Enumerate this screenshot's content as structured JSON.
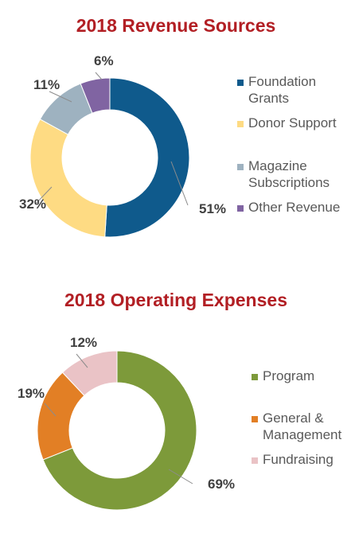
{
  "chart_data": [
    {
      "type": "pie",
      "title": "2018 Revenue Sources",
      "categories": [
        "Foundation Grants",
        "Donor Support",
        "Magazine Subscriptions",
        "Other Revenue"
      ],
      "legend_lines": [
        [
          "Foundation",
          "Grants"
        ],
        [
          "Donor Support"
        ],
        [
          "Magazine",
          "Subscriptions"
        ],
        [
          "Other Revenue"
        ]
      ],
      "values": [
        51,
        32,
        11,
        6
      ],
      "labels": [
        "51%",
        "32%",
        "11%",
        "6%"
      ],
      "colors": [
        "#0f5a8c",
        "#fedb83",
        "#9eb2c0",
        "#8064a2"
      ],
      "style": "donut",
      "legend": "right"
    },
    {
      "type": "pie",
      "title": "2018 Operating Expenses",
      "categories": [
        "Program",
        "General & Management",
        "Fundraising"
      ],
      "legend_lines": [
        [
          "Program"
        ],
        [
          "General &",
          "Management"
        ],
        [
          "Fundraising"
        ]
      ],
      "values": [
        69,
        19,
        12
      ],
      "labels": [
        "69%",
        "19%",
        "12%"
      ],
      "colors": [
        "#7d9a3a",
        "#e27f25",
        "#eac3c6"
      ],
      "style": "donut",
      "legend": "right"
    }
  ]
}
